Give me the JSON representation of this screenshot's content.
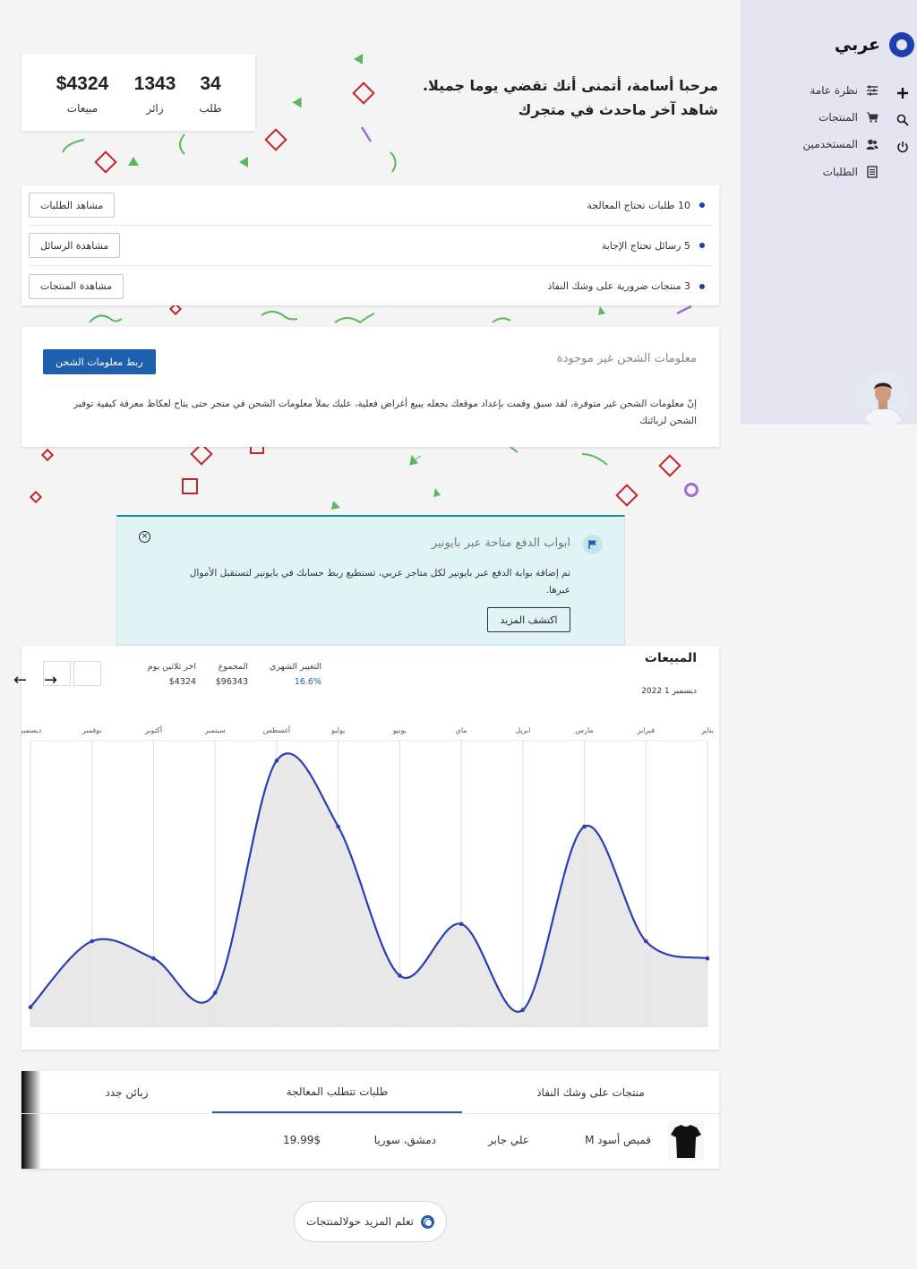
{
  "brand": {
    "name": "عربي"
  },
  "sidebar": {
    "items": [
      {
        "label": "نظرة عامة",
        "icon": "sliders-icon"
      },
      {
        "label": "المنتجات",
        "icon": "cart-icon"
      },
      {
        "label": "المستخدمين",
        "icon": "users-icon"
      },
      {
        "label": "الطلبات",
        "icon": "list-icon"
      }
    ],
    "tools": [
      {
        "icon": "plus-icon"
      },
      {
        "icon": "search-icon"
      },
      {
        "icon": "power-icon"
      }
    ]
  },
  "stats": {
    "orders": {
      "value": "34",
      "label": "طلب"
    },
    "visitors": {
      "value": "1343",
      "label": "زائر"
    },
    "sales": {
      "value": "$4324",
      "label": "مبيعات"
    }
  },
  "greeting": {
    "line1": "مرحبا أسامة، أتمنى أنك تقضي يوما جميلا.",
    "line2": "شاهد آخر ماحدث في متجرك"
  },
  "tasks": [
    {
      "text": "10 طلبات تحتاج المعالجة",
      "button": "مشاهد الطلبات"
    },
    {
      "text": "5 رسائل تحتاج الإجابة",
      "button": "مشاهدة الرسائل"
    },
    {
      "text": "3 منتجات ضرورية على وشك النفاذ",
      "button": "مشاهدة المنتجات"
    }
  ],
  "shipping": {
    "title": "معلومات الشحن غير موجودة",
    "button": "ربط معلومات الشحن",
    "text": "إنّ معلومات الشحن غير متوفرة، لقد سبق وقمت بإعداد موقعك بجعله يبيع أغراض فعلية، عليك بملأ معلومات الشحن في متجر حتى يتاح لعكاظ معرفة كيفية توفير الشحن لزبائنك"
  },
  "notice": {
    "title": "ابواب الدفع متاحة عبر بايونير",
    "text": "تم إضافة بوابة الدفع عبر بايونير لكل متاجر عربي، تستطيع ربط حسابك في بايونير لتستقبل الأموال عبرها.",
    "button": "اكتشف المزيد"
  },
  "sales": {
    "title": "المبيعات",
    "date": "ديسمبر 1 2022",
    "metrics": [
      {
        "label": "التغيير الشهري",
        "value": "16.6%",
        "color": "#1e5fae"
      },
      {
        "label": "المجموع",
        "value": "$96343",
        "color": "#333333"
      },
      {
        "label": "اخر ثلاثين يوم",
        "value": "$4324",
        "color": "#333333"
      }
    ]
  },
  "chart_data": {
    "type": "area",
    "categories": [
      "يناير",
      "فبراير",
      "مارس",
      "ابريل",
      "ماي",
      "يونيو",
      "يوليو",
      "أغسطس",
      "سبتمبر",
      "أكتوبر",
      "نوفمبر",
      "ديسمبر"
    ],
    "values": [
      24,
      30,
      70,
      6,
      36,
      18,
      70,
      93,
      12,
      24,
      30,
      7
    ],
    "ylim": [
      0,
      100
    ],
    "grid": true,
    "line_color": "#2a3fb0",
    "fill_color": "#e6e6e6"
  },
  "tabs": {
    "items": [
      {
        "label": "منتجات على وشك النفاذ"
      },
      {
        "label": "طلبات تتطلب المعالجة"
      },
      {
        "label": "زبائن جدد"
      }
    ],
    "row": {
      "product": "قميص أسود M",
      "customer": "علي جابر",
      "location": "دمشق، سوريا",
      "price": "19.99$"
    }
  },
  "learn": {
    "label": "تعلم المزيد حولالمنتجات"
  }
}
